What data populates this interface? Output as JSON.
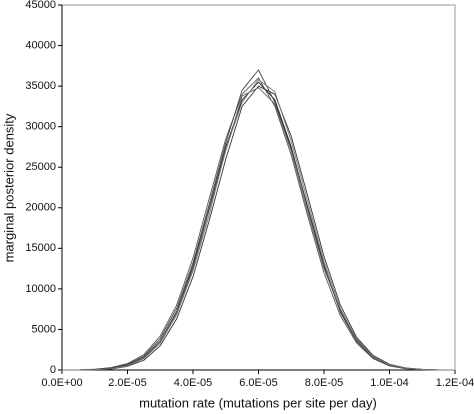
{
  "chart_data": {
    "type": "line",
    "x_label": "mutation rate (mutations per site per day)",
    "y_label": "marginal posterior density",
    "x": [
      0,
      5e-06,
      1e-05,
      1.5e-05,
      2e-05,
      2.5e-05,
      3e-05,
      3.5e-05,
      4e-05,
      4.5e-05,
      5e-05,
      5.5e-05,
      6e-05,
      6.5e-05,
      7e-05,
      7.5e-05,
      8e-05,
      8.5e-05,
      9e-05,
      9.5e-05,
      0.0001,
      0.000105,
      0.00011,
      0.000115,
      0.00012
    ],
    "series": [
      {
        "color": "#222222",
        "values": [
          0,
          0,
          60,
          200,
          600,
          1560,
          3600,
          7200,
          12800,
          20000,
          27500,
          33300,
          35500,
          33300,
          27500,
          20000,
          12800,
          7200,
          3600,
          1560,
          600,
          200,
          60,
          0,
          0
        ]
      },
      {
        "color": "#555555",
        "values": [
          0,
          0,
          100,
          300,
          800,
          1900,
          4200,
          8000,
          13800,
          21200,
          28500,
          34000,
          36000,
          32500,
          26500,
          19000,
          12000,
          6700,
          3300,
          1400,
          500,
          150,
          40,
          0,
          0
        ]
      },
      {
        "color": "#333333",
        "values": [
          0,
          0,
          30,
          120,
          450,
          1200,
          3000,
          6300,
          11500,
          18500,
          26000,
          32500,
          35000,
          34000,
          28800,
          21500,
          14000,
          8000,
          4000,
          1800,
          700,
          250,
          80,
          0,
          0
        ]
      },
      {
        "color": "#666666",
        "values": [
          0,
          0,
          50,
          180,
          550,
          1500,
          3500,
          7000,
          12500,
          19800,
          27000,
          33800,
          34800,
          32800,
          27000,
          19500,
          12500,
          7400,
          3800,
          1700,
          650,
          220,
          70,
          10,
          0
        ]
      },
      {
        "color": "#444444",
        "values": [
          0,
          0,
          80,
          250,
          700,
          1700,
          3900,
          7600,
          13200,
          20500,
          28000,
          34500,
          37000,
          33000,
          27300,
          20200,
          13000,
          7100,
          3500,
          1500,
          550,
          180,
          50,
          0,
          0
        ]
      },
      {
        "color": "#777777",
        "values": [
          0,
          0,
          40,
          150,
          500,
          1400,
          3300,
          6800,
          12200,
          19200,
          27200,
          33000,
          35800,
          34300,
          28200,
          20800,
          13400,
          7600,
          3700,
          1600,
          620,
          210,
          60,
          0,
          0
        ]
      }
    ],
    "xlim": [
      0,
      0.00012
    ],
    "xticks": [
      {
        "value": 0,
        "label": "0.0E+00"
      },
      {
        "value": 2e-05,
        "label": "2.0E-05"
      },
      {
        "value": 4e-05,
        "label": "4.0E-05"
      },
      {
        "value": 6e-05,
        "label": "6.0E-05"
      },
      {
        "value": 8e-05,
        "label": "8.0E-05"
      },
      {
        "value": 0.0001,
        "label": "1.0E-04"
      },
      {
        "value": 0.00012,
        "label": "1.2E-04"
      }
    ],
    "ylim": [
      0,
      45000
    ],
    "yticks": [
      0,
      5000,
      10000,
      15000,
      20000,
      25000,
      30000,
      35000,
      40000,
      45000
    ]
  }
}
